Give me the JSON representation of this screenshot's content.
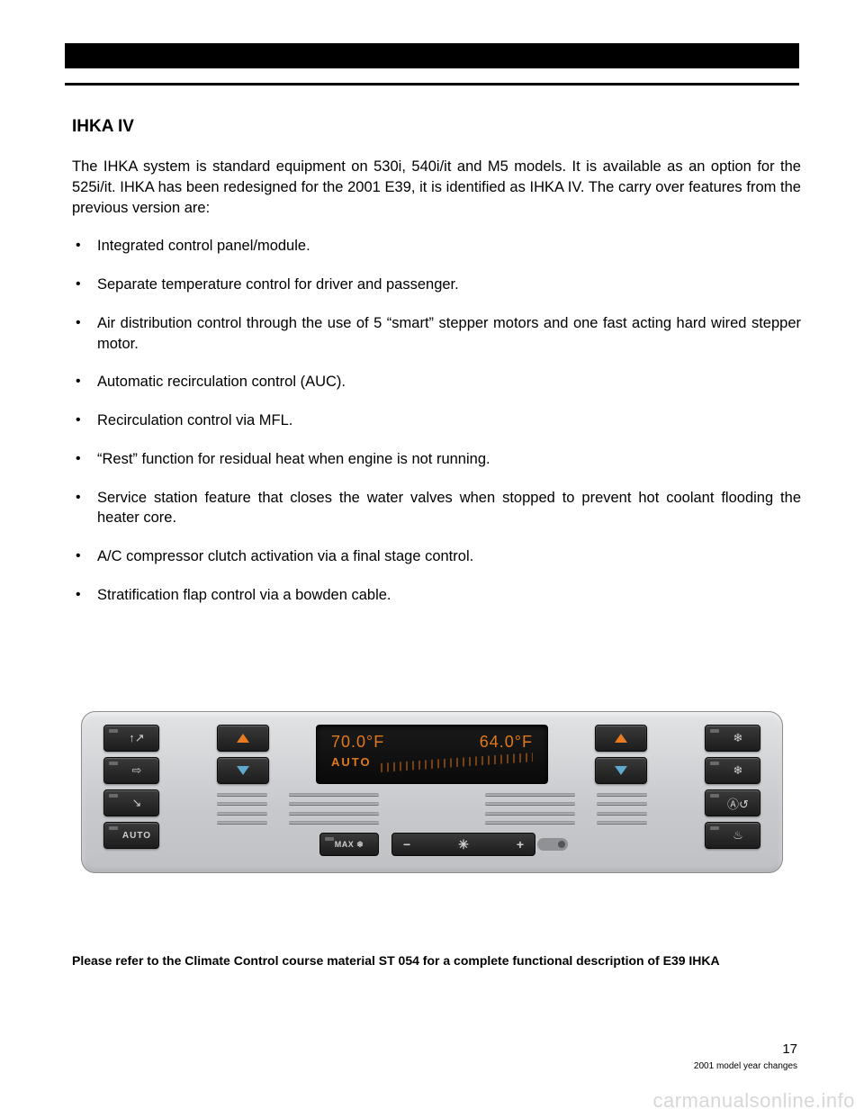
{
  "heading": "IHKA IV",
  "intro": "The IHKA system is standard equipment on 530i, 540i/it and M5 models.  It is available as an option for the 525i/it.  IHKA has been redesigned for the 2001 E39, it is identified as IHKA IV.  The carry over features from the previous version are:",
  "bullets": [
    "Integrated control panel/module.",
    "Separate temperature control for driver and passenger.",
    "Air distribution control through the use of 5 “smart” stepper motors and one fast acting hard wired stepper motor.",
    "Automatic recirculation control (AUC).",
    "Recirculation control via MFL.",
    "“Rest” function for residual heat when engine is not running.",
    "Service station feature that closes the water valves when stopped to prevent hot coolant flooding the heater core.",
    "A/C compressor clutch activation via a final stage control.",
    "Stratification flap control via a bowden cable."
  ],
  "panel": {
    "display": {
      "left_temp": "70.0°F",
      "right_temp": "64.0°F",
      "mode": "AUTO",
      "text_color": "#e07a1a",
      "bg_color": "#111111"
    },
    "left_buttons": [
      {
        "name": "defrost-upper-button",
        "symbol": "↑↗"
      },
      {
        "name": "face-vent-button",
        "symbol": "⇨"
      },
      {
        "name": "floor-vent-button",
        "symbol": "↘"
      },
      {
        "name": "auto-button",
        "label": "AUTO"
      }
    ],
    "right_buttons": [
      {
        "name": "front-defrost-button",
        "symbol": "❄"
      },
      {
        "name": "ac-button",
        "symbol": "❄"
      },
      {
        "name": "recirc-auto-button",
        "symbol": "Ⓐ↺"
      },
      {
        "name": "rear-defrost-button",
        "symbol": "♨"
      }
    ],
    "temp_up_color": "#e87b1f",
    "temp_down_color": "#5fa9cf",
    "max_label": "MAX ❄",
    "fan": {
      "minus": "−",
      "icon": "✳",
      "plus": "+"
    },
    "panel_bg": "#d3d5d8",
    "button_bg": "#222222"
  },
  "note": "Please refer to the Climate Control course material ST 054 for a complete functional description of E39 IHKA",
  "page_number": "17",
  "footer": "2001 model year changes",
  "watermark": "carmanualsonline.info"
}
